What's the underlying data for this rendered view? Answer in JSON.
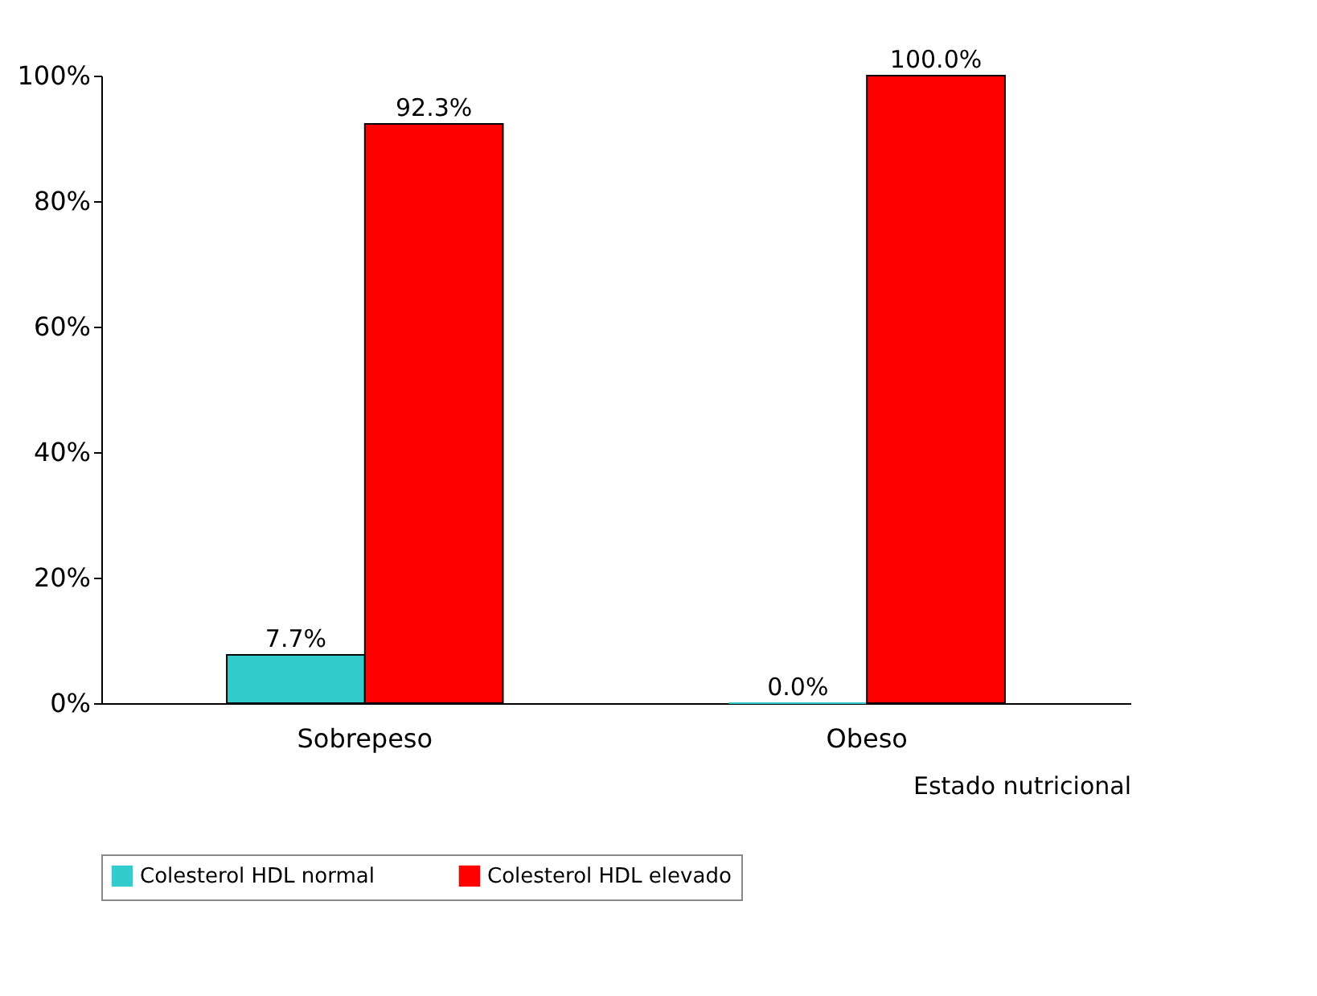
{
  "chart_data": {
    "type": "bar",
    "xlabel": "Estado nutricional",
    "categories": [
      "Sobrepeso",
      "Obeso"
    ],
    "series": [
      {
        "name": "Colesterol HDL normal",
        "color": "#33cccc",
        "values": [
          7.7,
          0.0
        ],
        "value_labels": [
          "7.7%",
          "0.0%"
        ]
      },
      {
        "name": "Colesterol HDL elevado",
        "color": "#ff0000",
        "values": [
          92.3,
          100.0
        ],
        "value_labels": [
          "92.3%",
          "100.0%"
        ]
      }
    ],
    "ylim": [
      0,
      100
    ],
    "yticks": [
      {
        "value": 0,
        "label": "0%"
      },
      {
        "value": 20,
        "label": "20%"
      },
      {
        "value": 40,
        "label": "40%"
      },
      {
        "value": 60,
        "label": "60%"
      },
      {
        "value": 80,
        "label": "80%"
      },
      {
        "value": 100,
        "label": "100%"
      }
    ],
    "grid": false,
    "legend": "bottom"
  }
}
